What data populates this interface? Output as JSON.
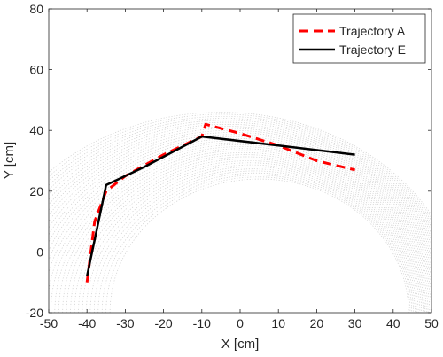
{
  "chart_data": {
    "type": "line",
    "xlabel": "X [cm]",
    "ylabel": "Y [cm]",
    "xlim": [
      -50,
      50
    ],
    "ylim": [
      -20,
      80
    ],
    "x_ticks": [
      "-50",
      "-40",
      "-30",
      "-20",
      "-10",
      "0",
      "10",
      "20",
      "30",
      "40",
      "50"
    ],
    "y_ticks": [
      "-20",
      "0",
      "20",
      "40",
      "60",
      "80"
    ],
    "grid": false,
    "legend_position": "top-right",
    "workspace": {
      "shape": "half-annulus",
      "center": [
        0,
        -20
      ],
      "outer_radii": [
        63,
        66
      ],
      "inner_radii": [
        39,
        44
      ],
      "color": "#c8c8c8"
    },
    "series": [
      {
        "name": "Trajectory A",
        "style": "dashed",
        "color": "#ff0000",
        "points": [
          [
            -40,
            -10
          ],
          [
            -38,
            10
          ],
          [
            -35,
            20
          ],
          [
            -30,
            25
          ],
          [
            -20,
            32
          ],
          [
            -10,
            38
          ],
          [
            -9,
            42
          ],
          [
            0,
            39
          ],
          [
            10,
            35
          ],
          [
            20,
            30
          ],
          [
            30,
            27
          ]
        ]
      },
      {
        "name": "Trajectory E",
        "style": "solid",
        "color": "#000000",
        "points": [
          [
            -40,
            -8
          ],
          [
            -35,
            22
          ],
          [
            -25,
            28
          ],
          [
            -10,
            38
          ],
          [
            10,
            35
          ],
          [
            30,
            32
          ]
        ]
      }
    ]
  }
}
